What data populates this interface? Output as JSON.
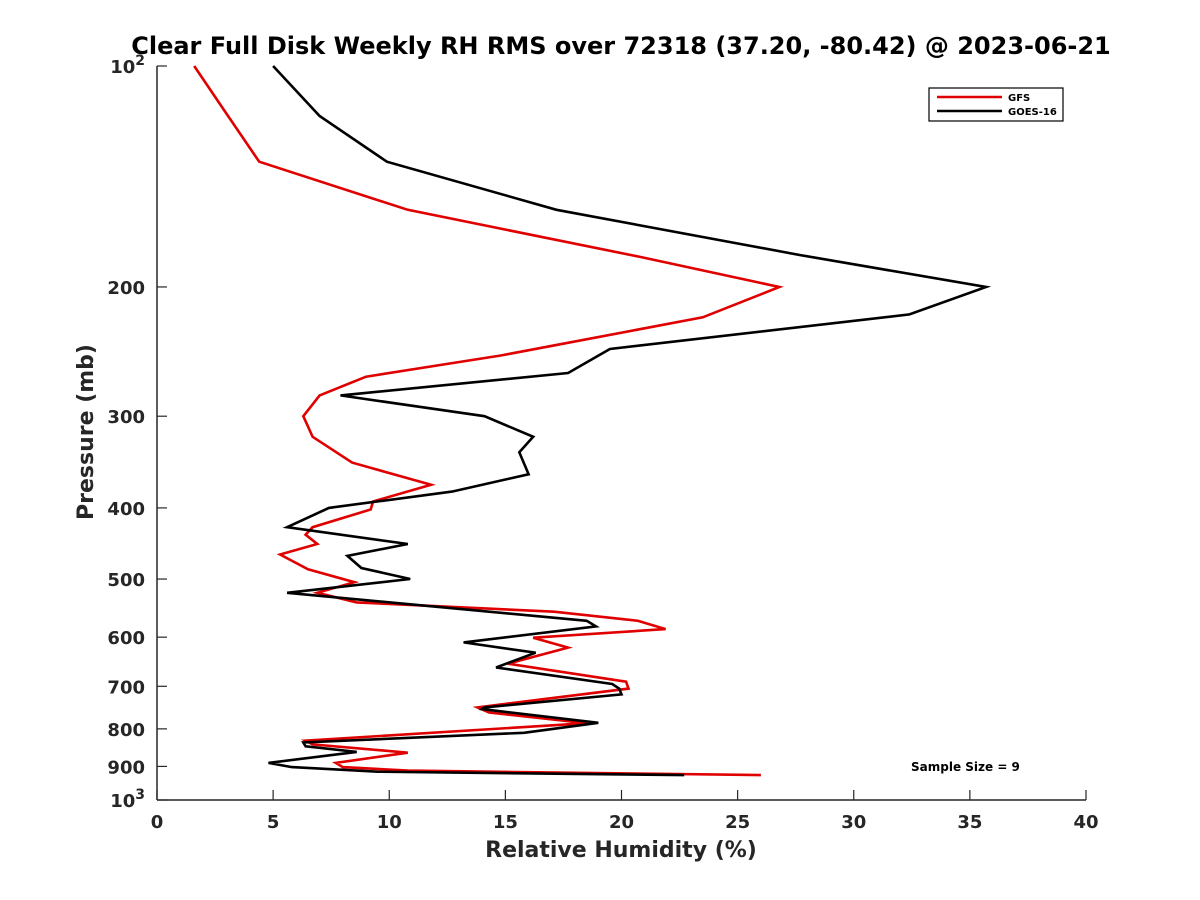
{
  "chart_data": {
    "type": "line",
    "title": "Clear Full Disk Weekly RH RMS over 72318 (37.20, -80.42) @ 2023-06-21",
    "xlabel": "Relative Humidity (%)",
    "ylabel": "Pressure (mb)",
    "xlim": [
      0,
      40
    ],
    "ylim": [
      100,
      1000
    ],
    "y_scale": "log",
    "y_reversed": true,
    "x_ticks": [
      0,
      5,
      10,
      15,
      20,
      25,
      30,
      35,
      40
    ],
    "y_ticks": [
      {
        "value": 100,
        "base": "10",
        "exp": "2"
      },
      {
        "value": 200,
        "label": "200"
      },
      {
        "value": 300,
        "label": "300"
      },
      {
        "value": 400,
        "label": "400"
      },
      {
        "value": 500,
        "label": "500"
      },
      {
        "value": 600,
        "label": "600"
      },
      {
        "value": 700,
        "label": "700"
      },
      {
        "value": 800,
        "label": "800"
      },
      {
        "value": 900,
        "label": "900"
      },
      {
        "value": 1000,
        "base": "10",
        "exp": "3"
      }
    ],
    "legend_position": "top-right",
    "series": [
      {
        "name": "GFS",
        "color": "#e00000",
        "points": [
          [
            1.6,
            100
          ],
          [
            2.9,
            115
          ],
          [
            4.4,
            135
          ],
          [
            10.8,
            157
          ],
          [
            20.8,
            182
          ],
          [
            26.8,
            200
          ],
          [
            23.5,
            220
          ],
          [
            14.8,
            248
          ],
          [
            9.0,
            265
          ],
          [
            7.0,
            281
          ],
          [
            6.3,
            300
          ],
          [
            6.7,
            320
          ],
          [
            8.4,
            347
          ],
          [
            11.8,
            372
          ],
          [
            9.3,
            392
          ],
          [
            9.2,
            402
          ],
          [
            6.7,
            425
          ],
          [
            6.4,
            435
          ],
          [
            6.9,
            448
          ],
          [
            5.3,
            463
          ],
          [
            6.5,
            485
          ],
          [
            8.5,
            505
          ],
          [
            6.9,
            522
          ],
          [
            8.6,
            538
          ],
          [
            17.1,
            554
          ],
          [
            20.7,
            570
          ],
          [
            21.9,
            585
          ],
          [
            16.2,
            601
          ],
          [
            17.7,
            620
          ],
          [
            15.1,
            652
          ],
          [
            20.2,
            690
          ],
          [
            20.3,
            705
          ],
          [
            13.8,
            748
          ],
          [
            14.3,
            760
          ],
          [
            18.5,
            786
          ],
          [
            6.4,
            830
          ],
          [
            6.7,
            840
          ],
          [
            10.8,
            862
          ],
          [
            7.7,
            890
          ],
          [
            8.0,
            902
          ],
          [
            10.8,
            912
          ],
          [
            26.0,
            925
          ]
        ]
      },
      {
        "name": "GOES-16",
        "color": "#000000",
        "points": [
          [
            5.0,
            100
          ],
          [
            7.0,
            117
          ],
          [
            9.9,
            135
          ],
          [
            17.2,
            157
          ],
          [
            27.7,
            181
          ],
          [
            35.7,
            200
          ],
          [
            32.4,
            218
          ],
          [
            19.5,
            243
          ],
          [
            17.7,
            262
          ],
          [
            7.9,
            281
          ],
          [
            14.1,
            300
          ],
          [
            16.2,
            320
          ],
          [
            15.6,
            336
          ],
          [
            16.0,
            360
          ],
          [
            12.7,
            380
          ],
          [
            7.4,
            400
          ],
          [
            5.6,
            425
          ],
          [
            10.8,
            448
          ],
          [
            8.2,
            465
          ],
          [
            8.8,
            483
          ],
          [
            10.9,
            500
          ],
          [
            5.6,
            522
          ],
          [
            18.5,
            570
          ],
          [
            18.9,
            580
          ],
          [
            13.2,
            610
          ],
          [
            16.3,
            630
          ],
          [
            14.6,
            660
          ],
          [
            19.6,
            695
          ],
          [
            19.9,
            705
          ],
          [
            20.0,
            718
          ],
          [
            14.1,
            748
          ],
          [
            14.0,
            752
          ],
          [
            19.0,
            785
          ],
          [
            15.8,
            810
          ],
          [
            6.3,
            835
          ],
          [
            6.4,
            845
          ],
          [
            8.6,
            860
          ],
          [
            4.8,
            890
          ],
          [
            5.8,
            902
          ],
          [
            9.5,
            915
          ],
          [
            22.7,
            925
          ]
        ]
      }
    ],
    "annotations": [
      {
        "text": "Sample Size = 9"
      }
    ]
  }
}
